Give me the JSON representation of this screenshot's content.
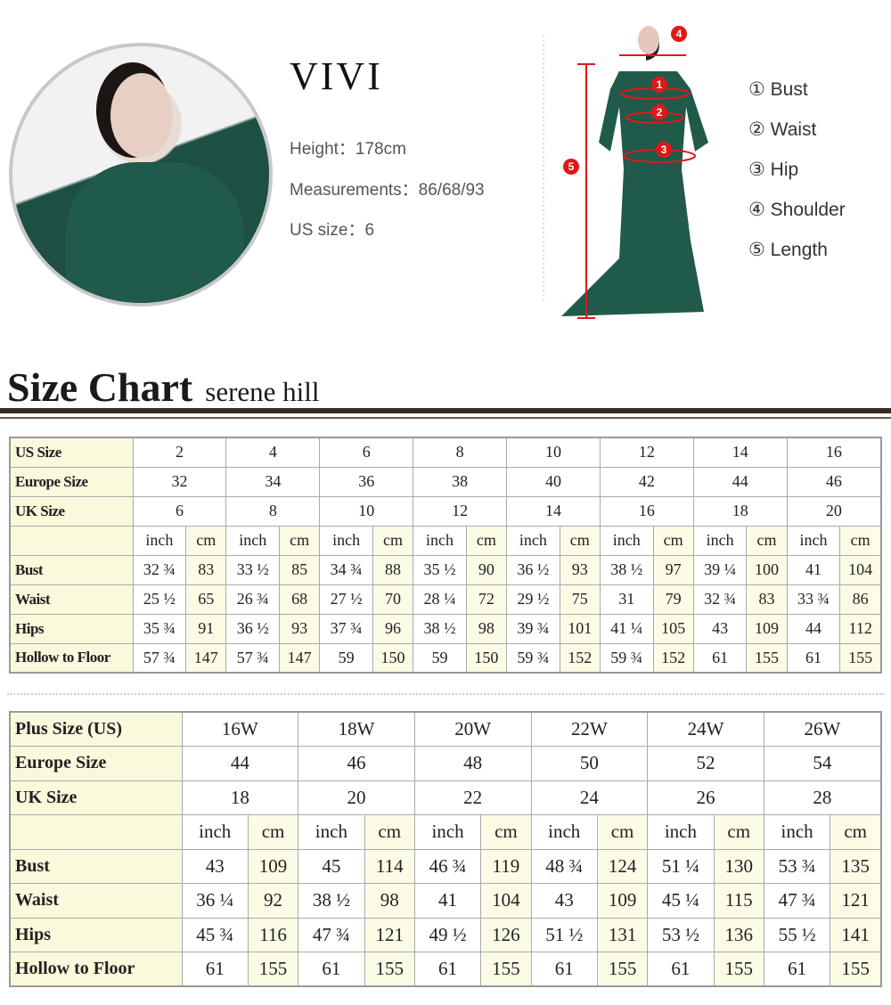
{
  "profile": {
    "name": "VIVI",
    "height": "Height：178cm",
    "measurements": "Measurements：86/68/93",
    "us_size": "US size：6"
  },
  "legend": [
    "① Bust",
    "② Waist",
    "③ Hip",
    "④ Shoulder",
    "⑤ Length"
  ],
  "markers": [
    "1",
    "2",
    "3",
    "4",
    "5"
  ],
  "accent": "#e01818",
  "title": {
    "main": "Size Chart",
    "brand": "serene hill"
  },
  "table1": {
    "header_rows": [
      {
        "label": "US Size",
        "values": [
          "2",
          "4",
          "6",
          "8",
          "10",
          "12",
          "14",
          "16"
        ]
      },
      {
        "label": "Europe Size",
        "values": [
          "32",
          "34",
          "36",
          "38",
          "40",
          "42",
          "44",
          "46"
        ]
      },
      {
        "label": "UK Size",
        "values": [
          "6",
          "8",
          "10",
          "12",
          "14",
          "16",
          "18",
          "20"
        ]
      }
    ],
    "units": [
      "inch",
      "cm"
    ],
    "rows": [
      {
        "label": "Bust",
        "values": [
          "32 ¾",
          "83",
          "33 ½",
          "85",
          "34 ¾",
          "88",
          "35 ½",
          "90",
          "36 ½",
          "93",
          "38 ½",
          "97",
          "39 ¼",
          "100",
          "41",
          "104"
        ]
      },
      {
        "label": "Waist",
        "values": [
          "25 ½",
          "65",
          "26 ¾",
          "68",
          "27 ½",
          "70",
          "28 ¼",
          "72",
          "29 ½",
          "75",
          "31",
          "79",
          "32 ¾",
          "83",
          "33 ¾",
          "86"
        ]
      },
      {
        "label": "Hips",
        "values": [
          "35 ¾",
          "91",
          "36 ½",
          "93",
          "37 ¾",
          "96",
          "38 ½",
          "98",
          "39 ¾",
          "101",
          "41 ¼",
          "105",
          "43",
          "109",
          "44",
          "112"
        ]
      },
      {
        "label": "Hollow to Floor",
        "values": [
          "57 ¾",
          "147",
          "57 ¾",
          "147",
          "59",
          "150",
          "59",
          "150",
          "59 ¾",
          "152",
          "59 ¾",
          "152",
          "61",
          "155",
          "61",
          "155"
        ]
      }
    ]
  },
  "table2": {
    "header_rows": [
      {
        "label": "Plus Size (US)",
        "values": [
          "16W",
          "18W",
          "20W",
          "22W",
          "24W",
          "26W"
        ]
      },
      {
        "label": "Europe Size",
        "values": [
          "44",
          "46",
          "48",
          "50",
          "52",
          "54"
        ]
      },
      {
        "label": "UK Size",
        "values": [
          "18",
          "20",
          "22",
          "24",
          "26",
          "28"
        ]
      }
    ],
    "units": [
      "inch",
      "cm"
    ],
    "rows": [
      {
        "label": "Bust",
        "values": [
          "43",
          "109",
          "45",
          "114",
          "46 ¾",
          "119",
          "48 ¾",
          "124",
          "51 ¼",
          "130",
          "53 ¾",
          "135"
        ]
      },
      {
        "label": "Waist",
        "values": [
          "36 ¼",
          "92",
          "38 ½",
          "98",
          "41",
          "104",
          "43",
          "109",
          "45 ¼",
          "115",
          "47 ¾",
          "121"
        ]
      },
      {
        "label": "Hips",
        "values": [
          "45 ¾",
          "116",
          "47 ¾",
          "121",
          "49 ½",
          "126",
          "51 ½",
          "131",
          "53 ½",
          "136",
          "55 ½",
          "141"
        ]
      },
      {
        "label": "Hollow to Floor",
        "values": [
          "61",
          "155",
          "61",
          "155",
          "61",
          "155",
          "61",
          "155",
          "61",
          "155",
          "61",
          "155"
        ]
      }
    ]
  }
}
